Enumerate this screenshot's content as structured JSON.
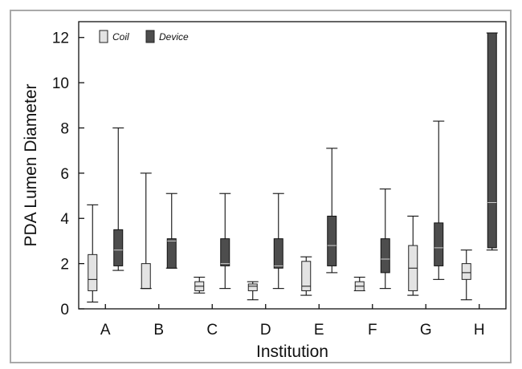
{
  "chart_data": {
    "type": "box",
    "xlabel": "Institution",
    "ylabel": "PDA Lumen Diameter",
    "ylim": [
      0,
      12.7
    ],
    "yticks": [
      0,
      2,
      4,
      6,
      8,
      10,
      12
    ],
    "categories": [
      "A",
      "B",
      "C",
      "D",
      "E",
      "F",
      "G",
      "H"
    ],
    "legend": {
      "position": "top-left"
    },
    "grid": false,
    "series": [
      {
        "name": "Coil",
        "color": "#e3e3e3",
        "boxes": [
          {
            "min": 0.3,
            "q1": 0.8,
            "median": 1.3,
            "q3": 2.4,
            "max": 4.6
          },
          {
            "min": 0.9,
            "q1": 0.9,
            "median": 0.9,
            "q3": 2.0,
            "max": 6.0
          },
          {
            "min": 0.7,
            "q1": 0.8,
            "median": 1.0,
            "q3": 1.2,
            "max": 1.4
          },
          {
            "min": 0.4,
            "q1": 0.8,
            "median": 1.0,
            "q3": 1.1,
            "max": 1.2
          },
          {
            "min": 0.6,
            "q1": 0.8,
            "median": 1.0,
            "q3": 2.1,
            "max": 2.3
          },
          {
            "min": 0.8,
            "q1": 0.8,
            "median": 1.0,
            "q3": 1.2,
            "max": 1.4
          },
          {
            "min": 0.6,
            "q1": 0.8,
            "median": 1.8,
            "q3": 2.8,
            "max": 4.1
          },
          {
            "min": 0.4,
            "q1": 1.3,
            "median": 1.6,
            "q3": 2.0,
            "max": 2.6
          }
        ]
      },
      {
        "name": "Device",
        "color": "#4d4d4d",
        "boxes": [
          {
            "min": 1.7,
            "q1": 1.9,
            "median": 2.6,
            "q3": 3.5,
            "max": 8.0
          },
          {
            "min": 1.8,
            "q1": 1.8,
            "median": 3.0,
            "q3": 3.1,
            "max": 5.1
          },
          {
            "min": 0.9,
            "q1": 1.9,
            "median": 2.0,
            "q3": 3.1,
            "max": 5.1
          },
          {
            "min": 0.9,
            "q1": 1.8,
            "median": 1.9,
            "q3": 3.1,
            "max": 5.1
          },
          {
            "min": 1.6,
            "q1": 1.9,
            "median": 2.8,
            "q3": 4.1,
            "max": 7.1
          },
          {
            "min": 0.9,
            "q1": 1.6,
            "median": 2.2,
            "q3": 3.1,
            "max": 5.3
          },
          {
            "min": 1.3,
            "q1": 1.9,
            "median": 2.7,
            "q3": 3.8,
            "max": 8.3
          },
          {
            "min": 2.6,
            "q1": 2.7,
            "median": 4.7,
            "q3": 12.2,
            "max": 12.2
          }
        ]
      }
    ]
  }
}
